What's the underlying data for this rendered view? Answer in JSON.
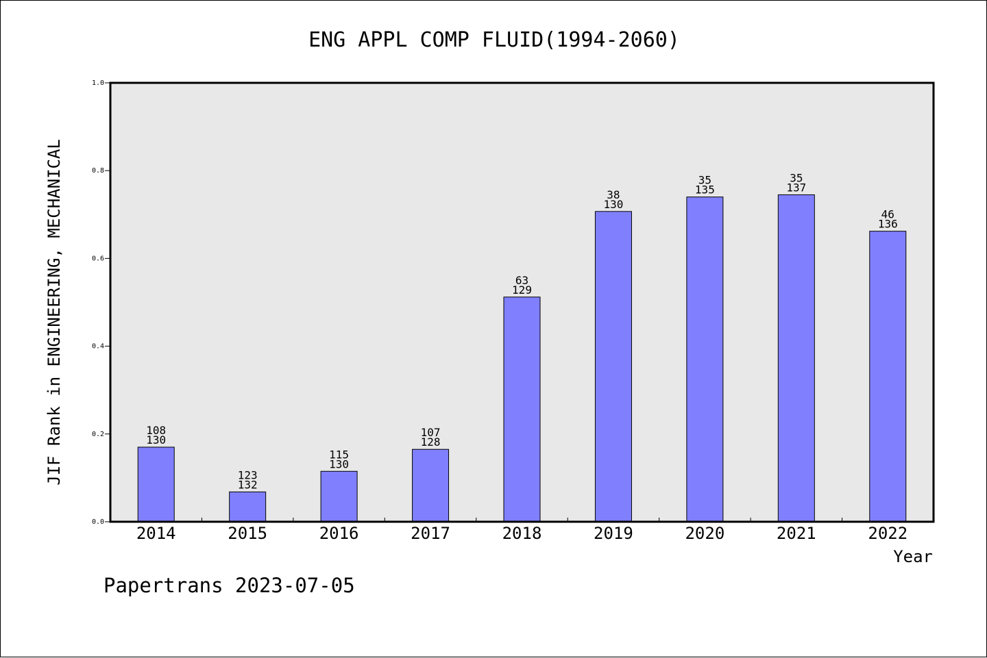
{
  "chart_data": {
    "type": "bar",
    "title": "ENG APPL COMP FLUID(1994-2060)",
    "xlabel": "Year",
    "ylabel": "JIF Rank in ENGINEERING, MECHANICAL",
    "ylim": [
      0,
      1.0
    ],
    "yticks": [
      "0.0",
      "0.2",
      "0.4",
      "0.6",
      "0.8",
      "1.0"
    ],
    "categories": [
      "2014",
      "2015",
      "2016",
      "2017",
      "2018",
      "2019",
      "2020",
      "2021",
      "2022"
    ],
    "values": [
      0.17,
      0.068,
      0.115,
      0.165,
      0.512,
      0.707,
      0.74,
      0.745,
      0.662
    ],
    "rank": [
      "108",
      "123",
      "115",
      "107",
      "63",
      "38",
      "35",
      "35",
      "46"
    ],
    "total": [
      "130",
      "132",
      "130",
      "128",
      "129",
      "130",
      "135",
      "137",
      "136"
    ],
    "bar_color": "#8080ff",
    "plot_background": "#e8e8e8",
    "grid": false,
    "legend": "none"
  },
  "footer": "Papertrans 2023-07-05"
}
